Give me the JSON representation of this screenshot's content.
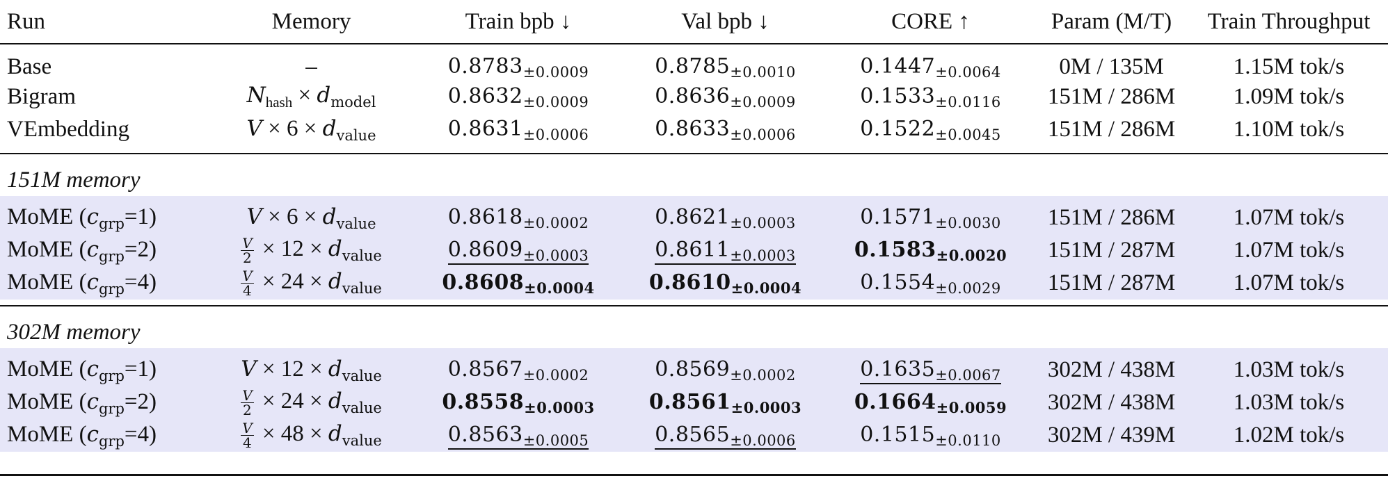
{
  "headers": {
    "run": "Run",
    "memory": "Memory",
    "train": "Train bpb ↓",
    "val": "Val bpb ↓",
    "core": "CORE ↑",
    "param": "Param (M/T)",
    "throughput": "Train Throughput"
  },
  "baselines": [
    {
      "run": "Base",
      "memory": "–",
      "train": "0.8783",
      "train_std": "±0.0009",
      "val": "0.8785",
      "val_std": "±0.0010",
      "core": "0.1447",
      "core_std": "±0.0064",
      "param": "0M / 135M",
      "throughput": "1.15M tok/s"
    },
    {
      "run": "Bigram",
      "mem_sym": "N",
      "mem_sub": "hash",
      "mem_rest": " × ",
      "mem_sym2": "d",
      "mem_sub2": "model",
      "train": "0.8632",
      "train_std": "±0.0009",
      "val": "0.8636",
      "val_std": "±0.0009",
      "core": "0.1533",
      "core_std": "±0.0116",
      "param": "151M / 286M",
      "throughput": "1.09M tok/s"
    },
    {
      "run": "VEmbedding",
      "mem_pre": "V",
      "mem_mid": " × 6 × ",
      "mem_sym": "d",
      "mem_sub": "value",
      "train": "0.8631",
      "train_std": "±0.0006",
      "val": "0.8633",
      "val_std": "±0.0006",
      "core": "0.1522",
      "core_std": "±0.0045",
      "param": "151M / 286M",
      "throughput": "1.10M tok/s"
    }
  ],
  "section151": {
    "title": "151M memory",
    "rows": [
      {
        "run": "MoME (",
        "c": "c",
        "c_sub": "grp",
        "eq": "=1)",
        "mem_pre": "V",
        "mem_mid": " × 6 × ",
        "mem_sym": "d",
        "mem_sub": "value",
        "train": "0.8618",
        "train_std": "±0.0002",
        "val": "0.8621",
        "val_std": "±0.0003",
        "core": "0.1571",
        "core_std": "±0.0030",
        "param": "151M / 286M",
        "throughput": "1.07M tok/s"
      },
      {
        "run": "MoME (",
        "c": "c",
        "c_sub": "grp",
        "eq": "=2)",
        "frac_top": "V",
        "frac_bot": "2",
        "mem_mid": " × 12 × ",
        "mem_sym": "d",
        "mem_sub": "value",
        "train": "0.8609",
        "train_std": "±0.0003",
        "val": "0.8611",
        "val_std": "±0.0003",
        "core": "0.1583",
        "core_std": "±0.0020",
        "param": "151M / 287M",
        "throughput": "1.07M tok/s"
      },
      {
        "run": "MoME (",
        "c": "c",
        "c_sub": "grp",
        "eq": "=4)",
        "frac_top": "V",
        "frac_bot": "4",
        "mem_mid": " × 24 × ",
        "mem_sym": "d",
        "mem_sub": "value",
        "train": "0.8608",
        "train_std": "±0.0004",
        "val": "0.8610",
        "val_std": "±0.0004",
        "core": "0.1554",
        "core_std": "±0.0029",
        "param": "151M / 287M",
        "throughput": "1.07M tok/s"
      }
    ]
  },
  "section302": {
    "title": "302M memory",
    "rows": [
      {
        "run": "MoME (",
        "c": "c",
        "c_sub": "grp",
        "eq": "=1)",
        "mem_pre": "V",
        "mem_mid": " × 12 × ",
        "mem_sym": "d",
        "mem_sub": "value",
        "train": "0.8567",
        "train_std": "±0.0002",
        "val": "0.8569",
        "val_std": "±0.0002",
        "core": "0.1635",
        "core_std": "±0.0067",
        "param": "302M / 438M",
        "throughput": "1.03M tok/s"
      },
      {
        "run": "MoME (",
        "c": "c",
        "c_sub": "grp",
        "eq": "=2)",
        "frac_top": "V",
        "frac_bot": "2",
        "mem_mid": " × 24 × ",
        "mem_sym": "d",
        "mem_sub": "value",
        "train": "0.8558",
        "train_std": "±0.0003",
        "val": "0.8561",
        "val_std": "±0.0003",
        "core": "0.1664",
        "core_std": "±0.0059",
        "param": "302M / 438M",
        "throughput": "1.03M tok/s"
      },
      {
        "run": "MoME (",
        "c": "c",
        "c_sub": "grp",
        "eq": "=4)",
        "frac_top": "V",
        "frac_bot": "4",
        "mem_mid": " × 48 × ",
        "mem_sym": "d",
        "mem_sub": "value",
        "train": "0.8563",
        "train_std": "±0.0005",
        "val": "0.8565",
        "val_std": "±0.0006",
        "core": "0.1515",
        "core_std": "±0.0110",
        "param": "302M / 439M",
        "throughput": "1.02M tok/s"
      }
    ]
  },
  "colors": {
    "row_shade": "#e6e6f8",
    "text": "#111111",
    "rule": "#111111"
  }
}
